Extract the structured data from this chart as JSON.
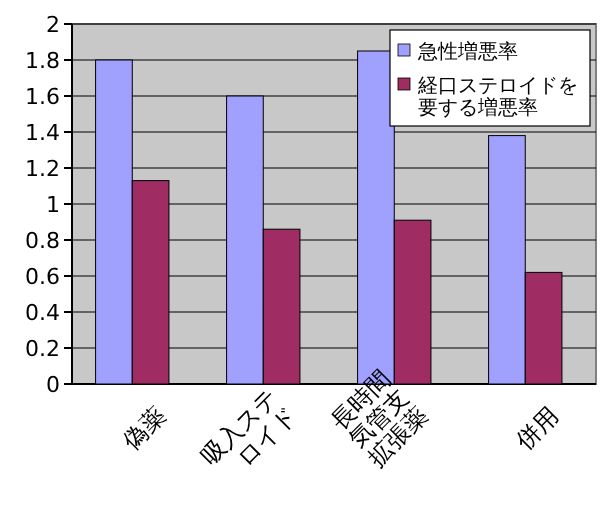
{
  "chart_data": {
    "type": "bar",
    "categories": [
      "偽薬",
      "吸入ステ\nロイド",
      "長時間\n気管支\n拡張薬",
      "併用"
    ],
    "series": [
      {
        "name": "急性増悪率",
        "color": "#a0a0ff",
        "values": [
          1.8,
          1.6,
          1.85,
          1.38
        ]
      },
      {
        "name": "経口ステロイドを要する増悪率",
        "color": "#a02c64",
        "values": [
          1.13,
          0.86,
          0.91,
          0.62
        ]
      }
    ],
    "ylim": [
      0,
      2
    ],
    "yticks": [
      0,
      0.2,
      0.4,
      0.6,
      0.8,
      1,
      1.2,
      1.4,
      1.6,
      1.8,
      2
    ],
    "grid": "y",
    "legend": "top right"
  }
}
